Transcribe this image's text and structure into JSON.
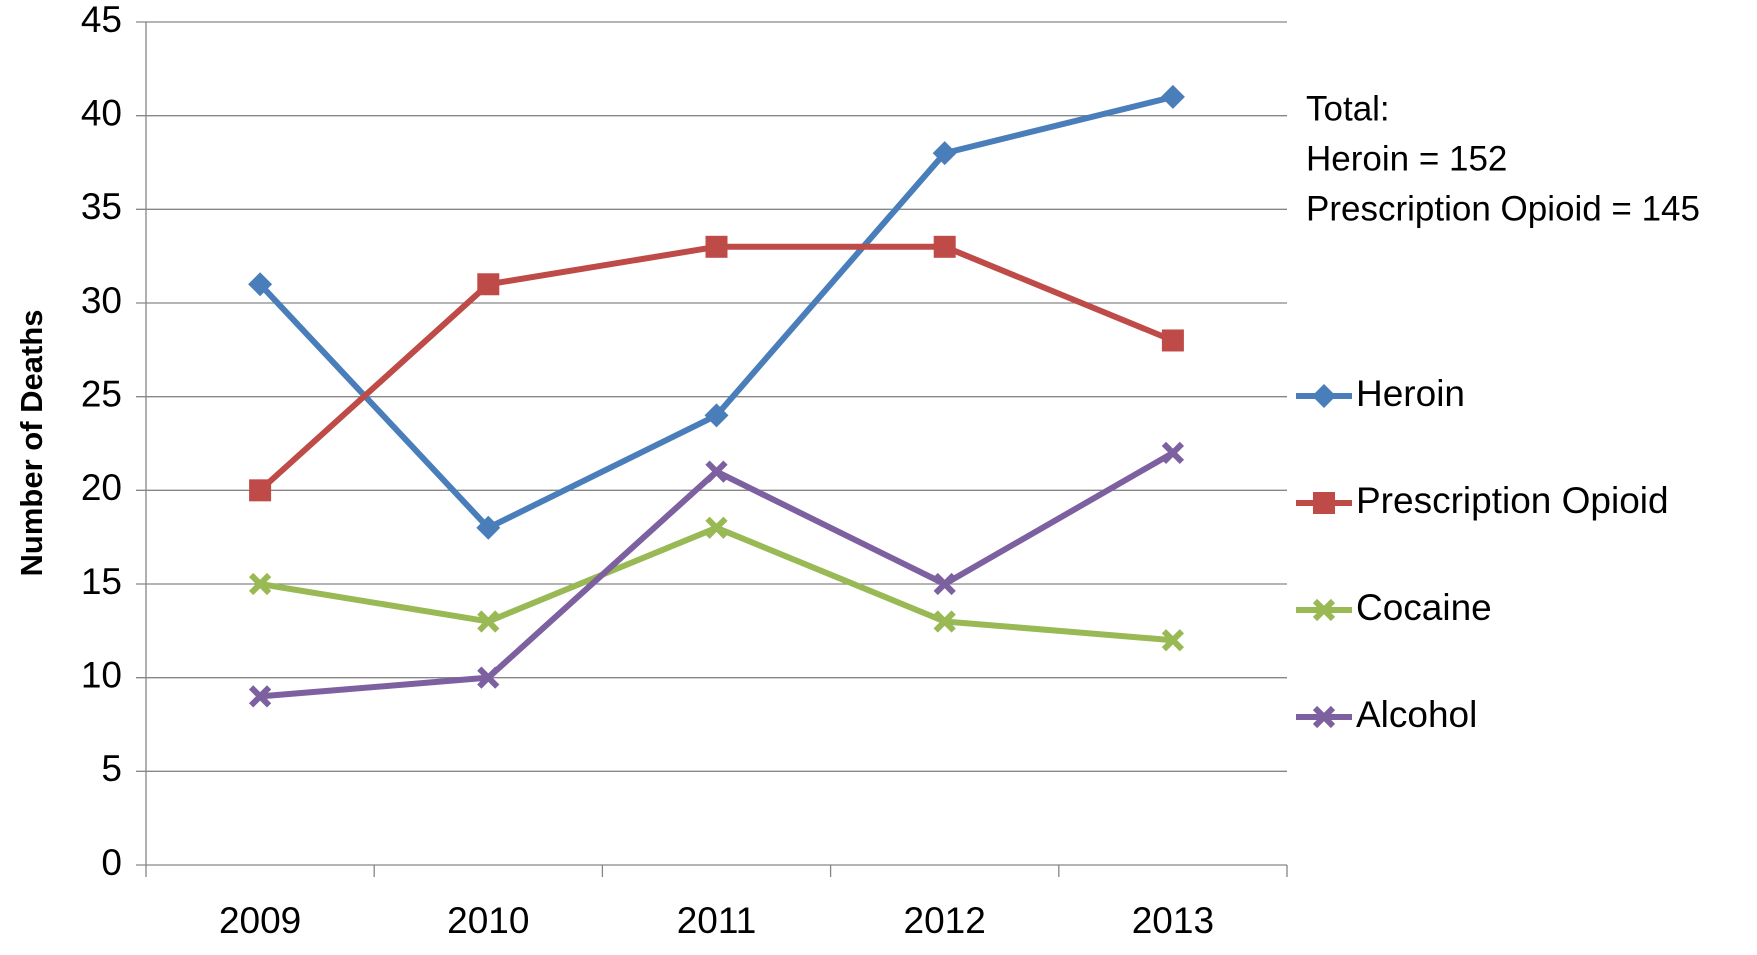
{
  "chart_data": {
    "type": "line",
    "y_label": "Number of Deaths",
    "categories": [
      "2009",
      "2010",
      "2011",
      "2012",
      "2013"
    ],
    "series": [
      {
        "name": "Heroin",
        "color": "#4a7ebb",
        "marker": "diamond",
        "values": [
          31,
          18,
          24,
          38,
          41
        ]
      },
      {
        "name": "Prescription Opioid",
        "color": "#be4b48",
        "marker": "square",
        "values": [
          20,
          31,
          33,
          33,
          28
        ]
      },
      {
        "name": "Cocaine",
        "color": "#98b954",
        "marker": "x",
        "values": [
          15,
          13,
          18,
          13,
          12
        ]
      },
      {
        "name": "Alcohol",
        "color": "#7d60a0",
        "marker": "x",
        "values": [
          9,
          10,
          21,
          15,
          22
        ]
      }
    ],
    "annotations": [
      "Total:",
      "Heroin = 152",
      "Prescription Opioid = 145"
    ],
    "ylim": [
      0,
      45
    ],
    "yticks": [
      0,
      5,
      10,
      15,
      20,
      25,
      30,
      35,
      40,
      45
    ],
    "grid": true,
    "legend": "right"
  }
}
